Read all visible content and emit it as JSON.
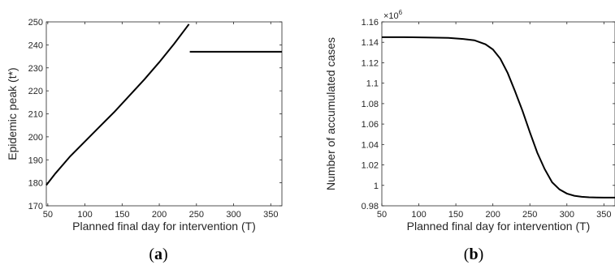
{
  "panels": [
    {
      "label_open": "(",
      "label_letter": "a",
      "label_close": ")"
    },
    {
      "label_open": "(",
      "label_letter": "b",
      "label_close": ")"
    }
  ],
  "chart_data": [
    {
      "type": "line",
      "title": "",
      "xlabel": "Planned final day for intervention (T)",
      "ylabel": "Epidemic peak (t*)",
      "xlim": [
        48,
        365
      ],
      "ylim": [
        170,
        250
      ],
      "xticks": [
        "50",
        "100",
        "150",
        "200",
        "250",
        "300",
        "350"
      ],
      "yticks": [
        "170",
        "180",
        "190",
        "200",
        "210",
        "220",
        "230",
        "240",
        "250"
      ],
      "grid": false,
      "series": [
        {
          "segments": [
            {
              "x": [
                48,
                60,
                80,
                100,
                120,
                140,
                160,
                180,
                200,
                220,
                240
              ],
              "y": [
                179,
                184,
                191.5,
                198,
                204.5,
                211,
                218,
                225,
                232.5,
                240.5,
                249
              ]
            },
            {
              "x": [
                241,
                365
              ],
              "y": [
                237,
                237
              ]
            }
          ]
        }
      ]
    },
    {
      "type": "line",
      "title": "",
      "xlabel": "Planned final day for intervention (T)",
      "ylabel": "Number of accumulated cases",
      "y_multiplier": "×10",
      "y_multiplier_exp": "6",
      "xlim": [
        50,
        365
      ],
      "ylim": [
        0.98,
        1.16
      ],
      "xticks": [
        "50",
        "100",
        "150",
        "200",
        "250",
        "300",
        "350"
      ],
      "yticks": [
        "0.98",
        "1",
        "1.02",
        "1.04",
        "1.06",
        "1.08",
        "1.1",
        "1.12",
        "1.14",
        "1.16"
      ],
      "grid": false,
      "series": [
        {
          "x": [
            50,
            80,
            110,
            140,
            160,
            175,
            190,
            200,
            210,
            220,
            230,
            240,
            250,
            260,
            270,
            280,
            290,
            300,
            310,
            320,
            330,
            340,
            350,
            365
          ],
          "y": [
            1.145,
            1.145,
            1.1448,
            1.1443,
            1.1433,
            1.142,
            1.138,
            1.133,
            1.124,
            1.11,
            1.092,
            1.073,
            1.052,
            1.032,
            1.016,
            1.003,
            0.996,
            0.992,
            0.9898,
            0.9888,
            0.9883,
            0.9881,
            0.988,
            0.988
          ]
        }
      ]
    }
  ]
}
